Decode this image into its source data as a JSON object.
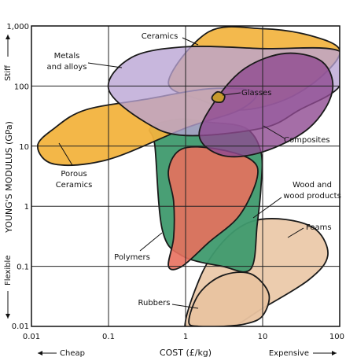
{
  "chart_data": {
    "type": "scatter",
    "plot_kind": "material-property bubble chart",
    "xlabel": "COST (£/kg)",
    "ylabel": "YOUNG'S MODULUS (GPa)",
    "x_scale": "log",
    "y_scale": "log",
    "xlim": [
      0.01,
      100
    ],
    "ylim": [
      0.01,
      1000
    ],
    "x_ticks": [
      "0.01",
      "0.1",
      "1",
      "10",
      "100"
    ],
    "y_ticks": [
      "0.01",
      "0.1",
      "1",
      "10",
      "100",
      "1,000"
    ],
    "grid": true,
    "x_annotations": {
      "low": "Cheap",
      "high": "Expensive"
    },
    "y_annotations": {
      "low": "Flexible",
      "high": "Stiff"
    },
    "series": [
      {
        "name": "Rubbers",
        "color": "#E9C3A0",
        "cost_range": [
          0.9,
          12
        ],
        "modulus_range": [
          0.01,
          0.08
        ],
        "outline": [
          [
            1.1,
            0.012
          ],
          [
            1.5,
            0.035
          ],
          [
            3,
            0.07
          ],
          [
            7,
            0.075
          ],
          [
            12,
            0.035
          ],
          [
            10,
            0.015
          ],
          [
            6,
            0.011
          ],
          [
            3,
            0.01
          ],
          [
            1.5,
            0.01
          ]
        ]
      },
      {
        "name": "Foams",
        "color": "#E9C3A0",
        "cost_range": [
          1,
          100
        ],
        "modulus_range": [
          0.01,
          1
        ],
        "outline": [
          [
            1,
            0.008
          ],
          [
            1.5,
            0.06
          ],
          [
            3,
            0.25
          ],
          [
            7,
            0.55
          ],
          [
            20,
            0.6
          ],
          [
            50,
            0.4
          ],
          [
            70,
            0.15
          ],
          [
            40,
            0.06
          ],
          [
            10,
            0.02
          ],
          [
            3,
            0.008
          ]
        ]
      },
      {
        "name": "Wood and wood products",
        "color": "#3F9A6E",
        "cost_range": [
          0.35,
          10
        ],
        "modulus_range": [
          0.08,
          30
        ],
        "outline": [
          [
            0.35,
            20
          ],
          [
            0.4,
            10
          ],
          [
            0.5,
            0.4
          ],
          [
            0.9,
            0.15
          ],
          [
            3,
            0.1
          ],
          [
            7,
            0.09
          ],
          [
            8.5,
            0.5
          ],
          [
            9.5,
            2
          ],
          [
            9.5,
            8
          ],
          [
            6,
            20
          ],
          [
            2,
            25
          ],
          [
            0.8,
            28
          ]
        ]
      },
      {
        "name": "Polymers",
        "color": "#E8705E",
        "cost_range": [
          0.3,
          10
        ],
        "modulus_range": [
          0.09,
          10
        ],
        "outline": [
          [
            0.6,
            0.1
          ],
          [
            0.7,
            0.3
          ],
          [
            0.7,
            1.2
          ],
          [
            0.6,
            4
          ],
          [
            0.9,
            9
          ],
          [
            2.5,
            9
          ],
          [
            7,
            6
          ],
          [
            8.5,
            3
          ],
          [
            5,
            0.7
          ],
          [
            2,
            0.25
          ],
          [
            0.9,
            0.1
          ]
        ]
      },
      {
        "name": "Porous Ceramics",
        "color": "#F2B33E",
        "cost_range": [
          0.01,
          8
        ],
        "modulus_range": [
          5,
          100
        ],
        "outline": [
          [
            0.012,
            10
          ],
          [
            0.02,
            20
          ],
          [
            0.05,
            40
          ],
          [
            0.3,
            60
          ],
          [
            2,
            90
          ],
          [
            8,
            80
          ],
          [
            5,
            40
          ],
          [
            1,
            20
          ],
          [
            0.1,
            6
          ],
          [
            0.02,
            5
          ]
        ]
      },
      {
        "name": "Metals and alloys",
        "color": "#B9A3D3",
        "cost_range": [
          0.1,
          100
        ],
        "modulus_range": [
          10,
          500
        ],
        "outline": [
          [
            0.1,
            90
          ],
          [
            0.2,
            300
          ],
          [
            1,
            450
          ],
          [
            10,
            420
          ],
          [
            100,
            380
          ],
          [
            100,
            100
          ],
          [
            30,
            40
          ],
          [
            10,
            20
          ],
          [
            1,
            15
          ],
          [
            0.3,
            25
          ]
        ]
      },
      {
        "name": "Ceramics",
        "color": "#F2B33E",
        "cost_range": [
          0.6,
          100
        ],
        "modulus_range": [
          20,
          1000
        ],
        "outline": [
          [
            0.6,
            120
          ],
          [
            2,
            800
          ],
          [
            10,
            900
          ],
          [
            40,
            700
          ],
          [
            100,
            400
          ],
          [
            60,
            150
          ],
          [
            20,
            60
          ],
          [
            5,
            40
          ],
          [
            1.5,
            60
          ]
        ]
      },
      {
        "name": "Composites",
        "color": "#8E4A91",
        "cost_range": [
          1.5,
          100
        ],
        "modulus_range": [
          6,
          400
        ],
        "outline": [
          [
            1.5,
            15
          ],
          [
            2.5,
            60
          ],
          [
            6,
            200
          ],
          [
            20,
            350
          ],
          [
            60,
            250
          ],
          [
            80,
            80
          ],
          [
            40,
            20
          ],
          [
            10,
            8
          ],
          [
            3,
            7
          ]
        ]
      },
      {
        "name": "Glasses",
        "color": "#C79A2E",
        "cost_range": [
          2,
          3.5
        ],
        "modulus_range": [
          50,
          80
        ],
        "outline": [
          [
            2.2,
            65
          ],
          [
            2.6,
            80
          ],
          [
            3.2,
            70
          ],
          [
            3,
            55
          ],
          [
            2.4,
            55
          ]
        ]
      }
    ]
  }
}
